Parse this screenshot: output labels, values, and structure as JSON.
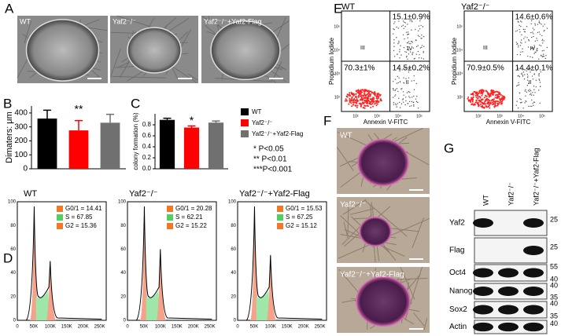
{
  "panel_letters": [
    "A",
    "B",
    "C",
    "D",
    "E",
    "F",
    "G"
  ],
  "panel_a": {
    "captions": [
      "WT",
      "Yaf2⁻/⁻",
      "Yaf2⁻/⁻+Yaf2-Flag"
    ]
  },
  "chart_data": [
    {
      "type": "bar",
      "ylabel": "Dimaters: μm",
      "categories": [
        null,
        null,
        null
      ],
      "values": [
        360,
        275,
        330
      ],
      "errors": [
        60,
        70,
        60
      ],
      "colors": [
        "#000000",
        "#ff0000",
        "#707070"
      ],
      "ylim": [
        0,
        450
      ],
      "yticks": [
        0,
        100,
        200,
        300,
        400
      ],
      "annotation": "**"
    },
    {
      "type": "bar",
      "ylabel": "colony formation (%)",
      "categories": [
        null,
        null,
        null
      ],
      "values": [
        0.89,
        0.75,
        0.84
      ],
      "errors": [
        0.03,
        0.03,
        0.03
      ],
      "colors": [
        "#000000",
        "#ff0000",
        "#707070"
      ],
      "legend": [
        "WT",
        "Yaf2⁻/⁻",
        "Yaf2⁻/⁻+Yaf2-Flag"
      ],
      "ylim": [
        0,
        1.0
      ],
      "yticks": [
        {
          "value": 0,
          "label": "0.0"
        },
        0.2,
        0.4,
        0.6,
        0.8
      ],
      "annotation": "*",
      "notes": [
        "*   P<0.05",
        "**  P<0.01",
        "***P<0.001"
      ]
    }
  ],
  "panel_d": {
    "plots": [
      {
        "title": "WT",
        "stats": [
          "G0/1  = 14.41",
          "S  = 67.85",
          "G2  = 15.36"
        ]
      },
      {
        "title": "Yaf2⁻/⁻",
        "stats": [
          "G0/1  = 20.28",
          "S  = 62.21",
          "G2  = 15.22"
        ]
      },
      {
        "title": "Yaf2⁻/⁻+Yaf2-Flag",
        "stats": [
          "G0/1  = 15.53",
          "S  = 67.25",
          "G2  = 15.12"
        ]
      }
    ],
    "xticks": [
      "0",
      "50K",
      "100K",
      "150K",
      "200K",
      "250K"
    ],
    "yticks": [
      "0",
      "20",
      "40",
      "60",
      "80",
      "100"
    ]
  },
  "panel_e": {
    "plots": [
      {
        "title": "WT",
        "quadrants": [
          "15.1±0.9%",
          "70.3±1%",
          "14.5±0.2%"
        ]
      },
      {
        "title": "Yaf2⁻/⁻",
        "quadrants": [
          "14.6±0.6%",
          "70.9±0.5%",
          "14.4±0.1%"
        ]
      }
    ],
    "quadrant_labels": [
      "III",
      "IV",
      "II"
    ],
    "ylabel": "Propidium Iodide",
    "xlabel": "Annexin V-FITC",
    "ticks": [
      "10²",
      "10³",
      "10⁴",
      "10⁵"
    ]
  },
  "panel_f": {
    "captions": [
      "WT",
      "Yaf2⁻/⁻",
      "Yaf2⁻/⁻+Yaf2-Flag"
    ]
  },
  "panel_g": {
    "lanes": [
      "WT",
      "Yaf2⁻/⁻",
      "Yaf2⁻/⁻+Yaf2-Flag"
    ],
    "rows": [
      {
        "name": "Yaf2",
        "markers": [
          "25"
        ]
      },
      {
        "name": "Flag",
        "markers": [
          "25"
        ]
      },
      {
        "name": "Oct4",
        "markers": [
          "55",
          "40"
        ]
      },
      {
        "name": "Nanog",
        "markers": [
          "40",
          "35"
        ]
      },
      {
        "name": "Sox2",
        "markers": [
          "40",
          "35"
        ]
      },
      {
        "name": "Actin",
        "markers": [
          "40"
        ]
      }
    ]
  }
}
